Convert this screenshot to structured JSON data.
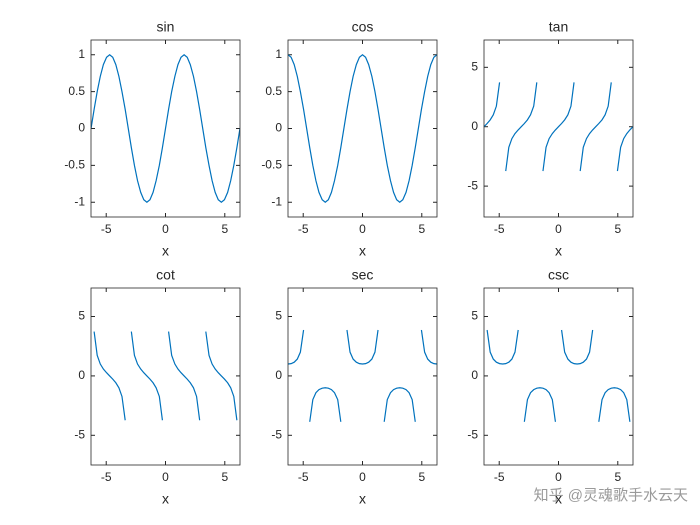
{
  "chart_data": [
    {
      "type": "line",
      "title": "sin",
      "xlabel": "x",
      "x": [
        -6.28,
        -6.02,
        -5.76,
        -5.5,
        -5.24,
        -4.97,
        -4.71,
        -4.45,
        -4.19,
        -3.93,
        -3.67,
        -3.4,
        -3.14,
        -2.88,
        -2.62,
        -2.36,
        -2.09,
        -1.83,
        -1.57,
        -1.31,
        -1.05,
        -0.79,
        -0.52,
        -0.26,
        0,
        0.26,
        0.52,
        0.79,
        1.05,
        1.31,
        1.57,
        1.83,
        2.09,
        2.36,
        2.62,
        2.88,
        3.14,
        3.4,
        3.67,
        3.93,
        4.19,
        4.45,
        4.71,
        4.97,
        5.24,
        5.5,
        5.76,
        6.02,
        6.28
      ],
      "values": [
        0,
        0.259,
        0.5,
        0.707,
        0.866,
        0.966,
        1,
        0.966,
        0.866,
        0.707,
        0.5,
        0.259,
        0,
        -0.259,
        -0.5,
        -0.707,
        -0.866,
        -0.966,
        -1,
        -0.966,
        -0.866,
        -0.707,
        -0.5,
        -0.259,
        0,
        0.259,
        0.5,
        0.707,
        0.866,
        0.966,
        1,
        0.966,
        0.866,
        0.707,
        0.5,
        0.259,
        0,
        -0.259,
        -0.5,
        -0.707,
        -0.866,
        -0.966,
        -1,
        -0.966,
        -0.866,
        -0.707,
        -0.5,
        -0.259,
        0
      ],
      "color": "#0072bd",
      "xlim": [
        -6.2832,
        6.2832
      ],
      "ylim": [
        -1.2,
        1.2
      ],
      "xticks": [
        -5,
        0,
        5
      ],
      "yticks": [
        -1,
        -0.5,
        0,
        0.5,
        1
      ]
    },
    {
      "type": "line",
      "title": "cos",
      "xlabel": "x",
      "x": [
        -6.28,
        -6.02,
        -5.76,
        -5.5,
        -5.24,
        -4.97,
        -4.71,
        -4.45,
        -4.19,
        -3.93,
        -3.67,
        -3.4,
        -3.14,
        -2.88,
        -2.62,
        -2.36,
        -2.09,
        -1.83,
        -1.57,
        -1.31,
        -1.05,
        -0.79,
        -0.52,
        -0.26,
        0,
        0.26,
        0.52,
        0.79,
        1.05,
        1.31,
        1.57,
        1.83,
        2.09,
        2.36,
        2.62,
        2.88,
        3.14,
        3.4,
        3.67,
        3.93,
        4.19,
        4.45,
        4.71,
        4.97,
        5.24,
        5.5,
        5.76,
        6.02,
        6.28
      ],
      "values": [
        1,
        0.966,
        0.866,
        0.707,
        0.5,
        0.259,
        0,
        -0.259,
        -0.5,
        -0.707,
        -0.866,
        -0.966,
        -1,
        -0.966,
        -0.866,
        -0.707,
        -0.5,
        -0.259,
        0,
        0.259,
        0.5,
        0.707,
        0.866,
        0.966,
        1,
        0.966,
        0.866,
        0.707,
        0.5,
        0.259,
        0,
        -0.259,
        -0.5,
        -0.707,
        -0.866,
        -0.966,
        -1,
        -0.966,
        -0.866,
        -0.707,
        -0.5,
        -0.259,
        0,
        0.259,
        0.5,
        0.707,
        0.866,
        0.966,
        1
      ],
      "color": "#0072bd",
      "xlim": [
        -6.2832,
        6.2832
      ],
      "ylim": [
        -1.2,
        1.2
      ],
      "xticks": [
        -5,
        0,
        5
      ],
      "yticks": [
        -1,
        -0.5,
        0,
        0.5,
        1
      ]
    },
    {
      "type": "line",
      "title": "tan",
      "xlabel": "x",
      "x": [
        -6.28,
        -6.02,
        -5.76,
        -5.5,
        -5.24,
        -4.97,
        -4.71,
        -4.45,
        -4.19,
        -3.93,
        -3.67,
        -3.4,
        -3.14,
        -2.88,
        -2.62,
        -2.36,
        -2.09,
        -1.83,
        -1.57,
        -1.31,
        -1.05,
        -0.79,
        -0.52,
        -0.26,
        0,
        0.26,
        0.52,
        0.79,
        1.05,
        1.31,
        1.57,
        1.83,
        2.09,
        2.36,
        2.62,
        2.88,
        3.14,
        3.4,
        3.67,
        3.93,
        4.19,
        4.45,
        4.71,
        4.97,
        5.24,
        5.5,
        5.76,
        6.02,
        6.28
      ],
      "values": [
        0,
        0.268,
        0.577,
        1,
        1.732,
        3.732,
        null,
        -3.732,
        -1.732,
        -1,
        -0.577,
        -0.268,
        0,
        0.268,
        0.577,
        1,
        1.732,
        3.732,
        null,
        -3.732,
        -1.732,
        -1,
        -0.577,
        -0.268,
        0,
        0.268,
        0.577,
        1,
        1.732,
        3.732,
        null,
        -3.732,
        -1.732,
        -1,
        -0.577,
        -0.268,
        0,
        0.268,
        0.577,
        1,
        1.732,
        3.732,
        null,
        -3.732,
        -1.732,
        -1,
        -0.577,
        -0.268,
        0
      ],
      "color": "#0072bd",
      "xlim": [
        -6.2832,
        6.2832
      ],
      "ylim": [
        -7.6,
        7.3
      ],
      "xticks": [
        -5,
        0,
        5
      ],
      "yticks": [
        -5,
        0,
        5
      ]
    },
    {
      "type": "line",
      "title": "cot",
      "xlabel": "x",
      "x": [
        -6.28,
        -6.02,
        -5.76,
        -5.5,
        -5.24,
        -4.97,
        -4.71,
        -4.45,
        -4.19,
        -3.93,
        -3.67,
        -3.4,
        -3.14,
        -2.88,
        -2.62,
        -2.36,
        -2.09,
        -1.83,
        -1.57,
        -1.31,
        -1.05,
        -0.79,
        -0.52,
        -0.26,
        0,
        0.26,
        0.52,
        0.79,
        1.05,
        1.31,
        1.57,
        1.83,
        2.09,
        2.36,
        2.62,
        2.88,
        3.14,
        3.4,
        3.67,
        3.93,
        4.19,
        4.45,
        4.71,
        4.97,
        5.24,
        5.5,
        5.76,
        6.02,
        6.28
      ],
      "values": [
        null,
        3.732,
        1.732,
        1,
        0.577,
        0.268,
        0,
        -0.268,
        -0.577,
        -1,
        -1.732,
        -3.732,
        null,
        3.732,
        1.732,
        1,
        0.577,
        0.268,
        0,
        -0.268,
        -0.577,
        -1,
        -1.732,
        -3.732,
        null,
        3.732,
        1.732,
        1,
        0.577,
        0.268,
        0,
        -0.268,
        -0.577,
        -1,
        -1.732,
        -3.732,
        null,
        3.732,
        1.732,
        1,
        0.577,
        0.268,
        0,
        -0.268,
        -0.577,
        -1,
        -1.732,
        -3.732,
        null
      ],
      "color": "#0072bd",
      "xlim": [
        -6.2832,
        6.2832
      ],
      "ylim": [
        -7.5,
        7.4
      ],
      "xticks": [
        -5,
        0,
        5
      ],
      "yticks": [
        -5,
        0,
        5
      ]
    },
    {
      "type": "line",
      "title": "sec",
      "xlabel": "x",
      "x": [
        -6.28,
        -6.02,
        -5.76,
        -5.5,
        -5.24,
        -4.97,
        -4.71,
        -4.45,
        -4.19,
        -3.93,
        -3.67,
        -3.4,
        -3.14,
        -2.88,
        -2.62,
        -2.36,
        -2.09,
        -1.83,
        -1.57,
        -1.31,
        -1.05,
        -0.79,
        -0.52,
        -0.26,
        0,
        0.26,
        0.52,
        0.79,
        1.05,
        1.31,
        1.57,
        1.83,
        2.09,
        2.36,
        2.62,
        2.88,
        3.14,
        3.4,
        3.67,
        3.93,
        4.19,
        4.45,
        4.71,
        4.97,
        5.24,
        5.5,
        5.76,
        6.02,
        6.28
      ],
      "values": [
        1,
        1.035,
        1.155,
        1.414,
        2,
        3.864,
        null,
        -3.864,
        -2,
        -1.414,
        -1.155,
        -1.035,
        -1,
        -1.035,
        -1.155,
        -1.414,
        -2,
        -3.864,
        null,
        3.864,
        2,
        1.414,
        1.155,
        1.035,
        1,
        1.035,
        1.155,
        1.414,
        2,
        3.864,
        null,
        -3.864,
        -2,
        -1.414,
        -1.155,
        -1.035,
        -1,
        -1.035,
        -1.155,
        -1.414,
        -2,
        -3.864,
        null,
        3.864,
        2,
        1.414,
        1.155,
        1.035,
        1
      ],
      "color": "#0072bd",
      "xlim": [
        -6.2832,
        6.2832
      ],
      "ylim": [
        -7.5,
        7.4
      ],
      "xticks": [
        -5,
        0,
        5
      ],
      "yticks": [
        -5,
        0,
        5
      ]
    },
    {
      "type": "line",
      "title": "csc",
      "xlabel": "x",
      "x": [
        -6.28,
        -6.02,
        -5.76,
        -5.5,
        -5.24,
        -4.97,
        -4.71,
        -4.45,
        -4.19,
        -3.93,
        -3.67,
        -3.4,
        -3.14,
        -2.88,
        -2.62,
        -2.36,
        -2.09,
        -1.83,
        -1.57,
        -1.31,
        -1.05,
        -0.79,
        -0.52,
        -0.26,
        0,
        0.26,
        0.52,
        0.79,
        1.05,
        1.31,
        1.57,
        1.83,
        2.09,
        2.36,
        2.62,
        2.88,
        3.14,
        3.4,
        3.67,
        3.93,
        4.19,
        4.45,
        4.71,
        4.97,
        5.24,
        5.5,
        5.76,
        6.02,
        6.28
      ],
      "values": [
        null,
        3.864,
        2,
        1.414,
        1.155,
        1.035,
        1,
        1.035,
        1.155,
        1.414,
        2,
        3.864,
        null,
        -3.864,
        -2,
        -1.414,
        -1.155,
        -1.035,
        -1,
        -1.035,
        -1.155,
        -1.414,
        -2,
        -3.864,
        null,
        3.864,
        2,
        1.414,
        1.155,
        1.035,
        1,
        1.035,
        1.155,
        1.414,
        2,
        3.864,
        null,
        -3.864,
        -2,
        -1.414,
        -1.155,
        -1.035,
        -1,
        -1.035,
        -1.155,
        -1.414,
        -2,
        -3.864,
        null
      ],
      "color": "#0072bd",
      "xlim": [
        -6.2832,
        6.2832
      ],
      "ylim": [
        -7.5,
        7.4
      ],
      "xticks": [
        -5,
        0,
        5
      ],
      "yticks": [
        -5,
        0,
        5
      ]
    }
  ],
  "watermark": "知乎 @灵魂歌手水云天"
}
